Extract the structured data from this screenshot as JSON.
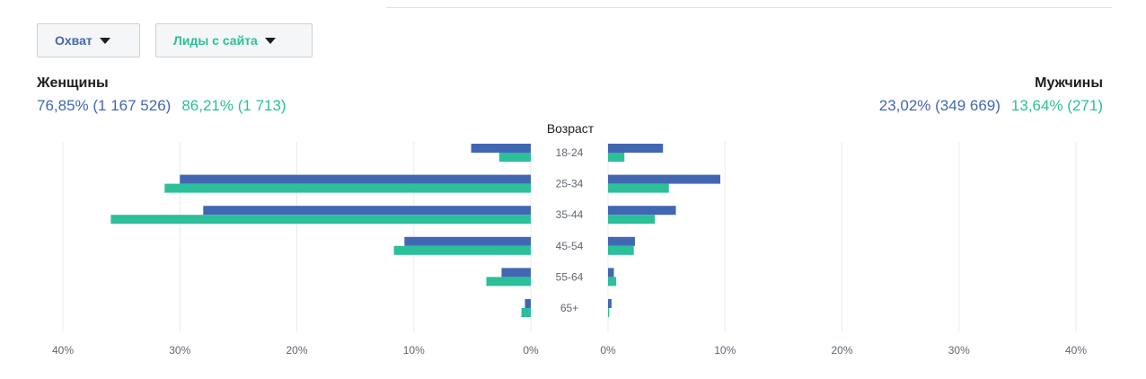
{
  "filters": {
    "reach_label": "Охват",
    "leads_label": "Лиды с сайта"
  },
  "women": {
    "title": "Женщины",
    "reach_stat": "76,85% (1 167 526)",
    "leads_stat": "86,21% (1 713)"
  },
  "men": {
    "title": "Мужчины",
    "reach_stat": "23,02% (349 669)",
    "leads_stat": "13,64% (271)"
  },
  "colors": {
    "reach": "#4267b2",
    "leads": "#2bbf9a",
    "grid": "#e9ebee"
  },
  "chart_data": {
    "type": "bar",
    "orientation": "horizontal-butterfly",
    "axis_title": "Возраст",
    "categories": [
      "18-24",
      "25-34",
      "35-44",
      "45-54",
      "55-64",
      "65+"
    ],
    "x_ticks_left": [
      "40%",
      "30%",
      "20%",
      "10%",
      "0%"
    ],
    "x_ticks_right": [
      "0%",
      "10%",
      "20%",
      "30%",
      "40%"
    ],
    "xlim": [
      0,
      40
    ],
    "grid": true,
    "series": [
      {
        "key": "reach",
        "side": "women",
        "values": [
          5.1,
          30,
          28,
          10.8,
          2.5,
          0.5
        ]
      },
      {
        "key": "leads",
        "side": "women",
        "values": [
          2.7,
          31.3,
          35.9,
          11.7,
          3.8,
          0.8
        ]
      },
      {
        "key": "reach",
        "side": "men",
        "values": [
          4.7,
          9.6,
          5.8,
          2.3,
          0.5,
          0.3
        ]
      },
      {
        "key": "leads",
        "side": "men",
        "values": [
          1.4,
          5.2,
          4,
          2.2,
          0.7,
          0.1
        ]
      }
    ]
  }
}
